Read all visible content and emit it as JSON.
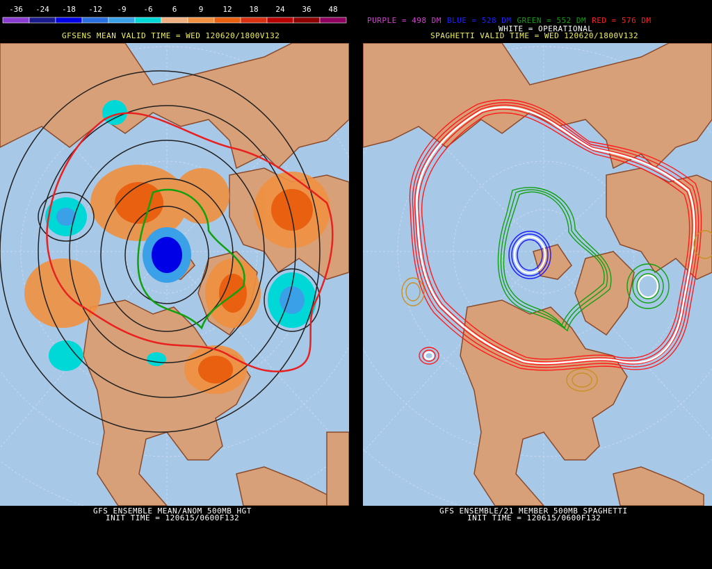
{
  "left": {
    "scale": {
      "labels": [
        "-36",
        "-24",
        "-18",
        "-12",
        "-9",
        "-6",
        "6",
        "9",
        "12",
        "18",
        "24",
        "36",
        "48"
      ],
      "colors": [
        "#8a3bd0",
        "#1a1a8c",
        "#0000e6",
        "#2a6fe0",
        "#3aa0e8",
        "#00d8d8",
        "#f0b080",
        "#f09040",
        "#e86010",
        "#d83010",
        "#b80000",
        "#8c0000",
        "#900060"
      ]
    },
    "valid_time": "GFSENS MEAN VALID TIME = WED 120620/1800V132",
    "footer_line1": "GFS ENSEMBLE MEAN/ANOM 500MB HGT",
    "footer_line2": "INIT TIME = 120615/0600F132"
  },
  "right": {
    "legend": [
      {
        "text": "PURPLE = 498 DM",
        "color": "#d040d0"
      },
      {
        "text": "BLUE = 528 DM",
        "color": "#2020ff"
      },
      {
        "text": "GREEN = 552 DM",
        "color": "#10a010"
      },
      {
        "text": "RED = 576 DM",
        "color": "#ff2020"
      }
    ],
    "white_line": "WHITE = OPERATIONAL",
    "valid_time": "SPAGHETTI VALID TIME = WED 120620/1800V132",
    "footer_line1": "GFS ENSEMBLE/21 MEMBER 500MB SPAGHETTI",
    "footer_line2": "INIT TIME = 120615/0600F132"
  },
  "colors": {
    "ocean": "#a8c8e8",
    "land": "#d8a078",
    "coast": "#8a4a2a",
    "grid": "#c8d8f0",
    "title_yellow": "#f0f060",
    "white": "#ffffff"
  }
}
